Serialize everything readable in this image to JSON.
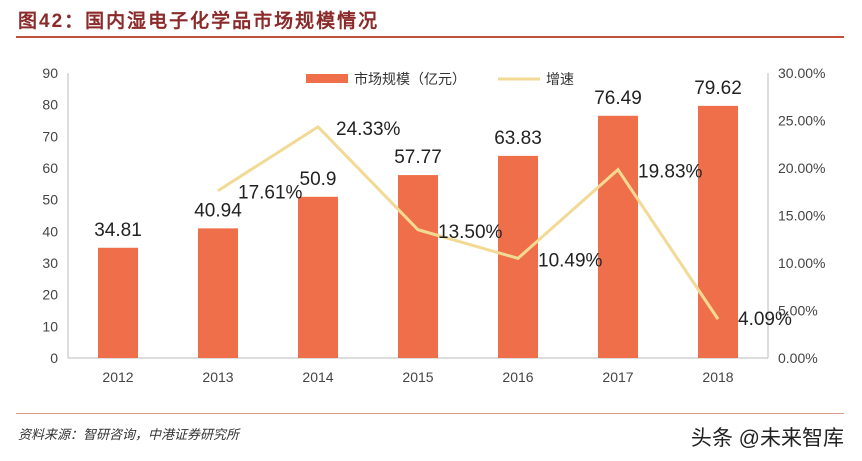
{
  "title": "图42：国内湿电子化学品市场规模情况",
  "source": "资料来源：智研咨询，中港证券研究所",
  "watermark": "头条 @未来智库",
  "colors": {
    "bar": "#ee6f4a",
    "line": "#f2da95",
    "title": "#8b2a2a"
  },
  "chart_data": {
    "type": "bar+line",
    "categories": [
      "2012",
      "2013",
      "2014",
      "2015",
      "2016",
      "2017",
      "2018"
    ],
    "series": [
      {
        "name": "市场规模（亿元）",
        "type": "bar",
        "axis": "left",
        "values": [
          34.81,
          40.94,
          50.9,
          57.77,
          63.83,
          76.49,
          79.62
        ],
        "labels": [
          "34.81",
          "40.94",
          "50.9",
          "57.77",
          "63.83",
          "76.49",
          "79.62"
        ]
      },
      {
        "name": "增速",
        "type": "line",
        "axis": "right",
        "values": [
          null,
          17.61,
          24.33,
          13.5,
          10.49,
          19.83,
          4.09
        ],
        "labels": [
          "",
          "17.61%",
          "24.33%",
          "13.50%",
          "10.49%",
          "19.83%",
          "4.09%"
        ]
      }
    ],
    "ylim_left": [
      0,
      90
    ],
    "yticks_left": [
      "0",
      "10",
      "20",
      "30",
      "40",
      "50",
      "60",
      "70",
      "80",
      "90"
    ],
    "ylim_right": [
      0,
      30
    ],
    "yticks_right": [
      "0.00%",
      "5.00%",
      "10.00%",
      "15.00%",
      "20.00%",
      "25.00%",
      "30.00%"
    ],
    "legend": "top-center",
    "grid": false
  }
}
